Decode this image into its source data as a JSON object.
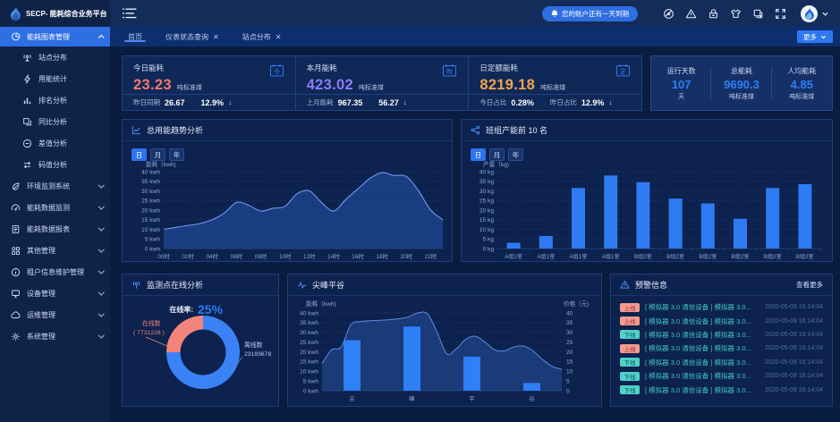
{
  "app": {
    "logo_text": "SECP- 能耗综合业务平台"
  },
  "header": {
    "notice": "您的账户还有一天到期",
    "icon_names": [
      "bell-icon",
      "protection-icon",
      "warning-icon",
      "lock-icon",
      "theme-icon",
      "copy-icon",
      "fullscreen-icon",
      "avatar",
      "chevron-down-icon"
    ]
  },
  "sidebar": {
    "items": [
      {
        "label": "能耗图表管理",
        "icon": "pie-chart-icon",
        "active": true,
        "caret": "up"
      },
      {
        "label": "站点分布",
        "icon": "site-marker-icon",
        "sub": true
      },
      {
        "label": "用能统计",
        "icon": "lightning-icon",
        "sub": true
      },
      {
        "label": "排名分析",
        "icon": "bar-rank-icon",
        "sub": true
      },
      {
        "label": "同比分析",
        "icon": "overlap-icon",
        "sub": true
      },
      {
        "label": "差值分析",
        "icon": "circle-minus-icon",
        "sub": true
      },
      {
        "label": "码值分析",
        "icon": "swap-icon",
        "sub": true
      },
      {
        "label": "环境监测系统",
        "icon": "leaf-icon",
        "caret": "down"
      },
      {
        "label": "能耗数据监测",
        "icon": "gauge-icon",
        "caret": "down"
      },
      {
        "label": "能耗数据报表",
        "icon": "report-icon",
        "caret": "down"
      },
      {
        "label": "其他管理",
        "icon": "grid-icon",
        "caret": "down"
      },
      {
        "label": "租户信息维护管理",
        "icon": "info-icon",
        "caret": "down"
      },
      {
        "label": "设备管理",
        "icon": "device-icon",
        "caret": "down"
      },
      {
        "label": "运维管理",
        "icon": "ops-icon",
        "caret": "down"
      },
      {
        "label": "系统管理",
        "icon": "gear-icon",
        "caret": "down"
      }
    ]
  },
  "tabs": {
    "items": [
      {
        "label": "首页",
        "closable": false,
        "active": true
      },
      {
        "label": "仪表状态查询",
        "closable": true,
        "active": false
      },
      {
        "label": "站点分布",
        "closable": true,
        "active": false
      }
    ],
    "more_label": "更多"
  },
  "kpis": {
    "cards": [
      {
        "title": "今日能耗",
        "value": "23.23",
        "unit": "吨标准煤",
        "color": "#f0796d",
        "icon_char": "今",
        "foot": [
          {
            "label": "昨日同期",
            "value": "26.67"
          },
          {
            "label": "",
            "value": "12.9%",
            "arrow": "down"
          }
        ]
      },
      {
        "title": "本月能耗",
        "value": "423.02",
        "unit": "吨标准煤",
        "color": "#8d7bf4",
        "icon_char": "昨",
        "foot": [
          {
            "label": "上月能耗",
            "value": "967.35"
          },
          {
            "label": "",
            "value": "56.27",
            "arrow": "down"
          }
        ]
      },
      {
        "title": "日定额能耗",
        "value": "8219.18",
        "unit": "吨标准煤",
        "color": "#f3a44c",
        "icon_char": "定",
        "foot": [
          {
            "label": "今日占比",
            "value": "0.28%"
          },
          {
            "label": "昨日占比",
            "value": "12.9%",
            "arrow": "down"
          }
        ]
      }
    ],
    "stats": [
      {
        "label": "运行天数",
        "value": "107",
        "unit": "天"
      },
      {
        "label": "总能耗",
        "value": "9690.3",
        "unit": "吨标准煤"
      },
      {
        "label": "人均能耗",
        "value": "4.85",
        "unit": "吨标准煤"
      }
    ]
  },
  "panels": {
    "trend": {
      "title": "总用能趋势分析",
      "periods": [
        "日",
        "月",
        "年"
      ],
      "active_period": "日"
    },
    "production": {
      "title": "班组产能前 10 名",
      "periods": [
        "日",
        "月",
        "年"
      ],
      "active_period": "日"
    },
    "online": {
      "title": "监测点在线分析",
      "rate_label": "在线率:",
      "rate": "25%",
      "online_label": "在线数",
      "online_value": "( 7731226 )",
      "offline_label": "离线数",
      "offline_value": "23193678"
    },
    "peak": {
      "title": "尖峰平谷"
    },
    "alerts": {
      "title": "预警信息",
      "more": "查看更多",
      "rows": [
        {
          "status": "上线",
          "type": "up",
          "message": "[ 模拟器 3.0 通信设备 ] 模拟器 3.0...",
          "time": "2020-05-09 16:14:04"
        },
        {
          "status": "上线",
          "type": "up",
          "message": "[ 模拟器 3.0 通信设备 ] 模拟器 3.0...",
          "time": "2020-05-09 16:14:04"
        },
        {
          "status": "下线",
          "type": "down",
          "message": "[ 模拟器 3.0 通信设备 ] 模拟器 3.0...",
          "time": "2020-05-09 16:14:04"
        },
        {
          "status": "上线",
          "type": "up",
          "message": "[ 模拟器 3.0 通信设备 ] 模拟器 3.0...",
          "time": "2020-05-09 16:14:04"
        },
        {
          "status": "下线",
          "type": "down",
          "message": "[ 模拟器 3.0 通信设备 ] 模拟器 3.0...",
          "time": "2020-05-09 16:14:04"
        },
        {
          "status": "下线",
          "type": "down",
          "message": "[ 模拟器 3.0 通信设备 ] 模拟器 3.0...",
          "time": "2020-05-09 16:14:04"
        },
        {
          "status": "下线",
          "type": "down",
          "message": "[ 模拟器 3.0 通信设备 ] 模拟器 3.0...",
          "time": "2020-05-09 16:14:04"
        }
      ]
    }
  },
  "colors": {
    "accent_blue": "#2e7bf3",
    "salmon": "#f2847c",
    "purple": "#8d7bf4",
    "orange": "#f3a44c",
    "teal": "#52d3cc",
    "panel_bg": "#0d224e",
    "page_bg": "#0a1c3f"
  },
  "chart_data": [
    {
      "id": "trend",
      "type": "area",
      "title": "总用能趋势分析",
      "ylabel": "能耗（kwh)",
      "yunit": "kwh",
      "ylim": [
        0,
        40
      ],
      "ystep": 5,
      "grid": "dashed",
      "x": [
        "00时",
        "01时",
        "02时",
        "03时",
        "04时",
        "05时",
        "06时",
        "07时",
        "08时",
        "09时",
        "10时",
        "11时",
        "12时",
        "13时",
        "14时",
        "15时",
        "16时",
        "17时",
        "18时",
        "19时",
        "20时",
        "21时",
        "22时",
        "23时"
      ],
      "xticks": [
        "00时",
        "02时",
        "04时",
        "06时",
        "08时",
        "10时",
        "12时",
        "14时",
        "16时",
        "18时",
        "20时",
        "22时"
      ],
      "values": [
        10,
        11,
        12,
        13,
        15,
        18.5,
        24,
        22.5,
        19.5,
        21,
        22,
        28.5,
        30,
        24,
        19.5,
        25.5,
        31,
        36.5,
        39.5,
        38,
        37.5,
        30,
        20,
        15
      ]
    },
    {
      "id": "production",
      "type": "bar",
      "title": "班组产能前 10 名",
      "ylabel": "产量（kg)",
      "yunit": "kg",
      "ylim": [
        0,
        40
      ],
      "ystep": 5,
      "grid": "dashed",
      "categories": [
        "A组1室",
        "A组1室",
        "A组1室",
        "A组1室",
        "B组2室",
        "B组2室",
        "B组2室",
        "B组2室",
        "B组2室",
        "B组2室"
      ],
      "values": [
        3,
        6.5,
        31.5,
        38,
        34.5,
        26,
        23.5,
        15.5,
        31.5,
        33.5
      ]
    },
    {
      "id": "online",
      "type": "pie",
      "title": "监测点在线分析",
      "slices": [
        {
          "name": "离线数",
          "value": 23193678,
          "pct": 75,
          "color": "#3b82f7"
        },
        {
          "name": "在线数",
          "value": 7731226,
          "pct": 25,
          "color": "#f2847c"
        }
      ],
      "rate": "25%"
    },
    {
      "id": "peak",
      "type": "combo",
      "title": "尖峰平谷",
      "ylabel_left": "能耗（kwh)",
      "ylabel_right": "价格（元)",
      "yunit": "kwh",
      "ylim": [
        0,
        40
      ],
      "ystep": 5,
      "grid": "dashed",
      "categories": [
        "尖",
        "峰",
        "平",
        "谷"
      ],
      "bar_values": [
        26,
        33,
        17.5,
        4
      ],
      "line_values": [
        14,
        21,
        22.5,
        34,
        35.5,
        36,
        36.2,
        36.5,
        37,
        38,
        40,
        39.5,
        30,
        19,
        21.5,
        26.5,
        28,
        25,
        21,
        20.5,
        22.5,
        23,
        20.5,
        16,
        12.5,
        11
      ]
    }
  ]
}
